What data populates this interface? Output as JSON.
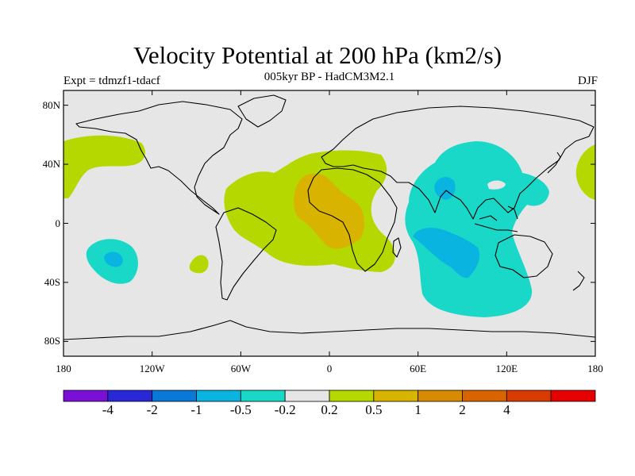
{
  "header": {
    "title": "Velocity Potential at 200 hPa (km2/s)",
    "subtitle": "005kyr BP - HadCM3M2.1",
    "left_label": "Expt = tdmzf1-tdacf",
    "right_label": "DJF"
  },
  "map": {
    "projection": "cylindrical-equidistant",
    "lon_range": [
      -180,
      180
    ],
    "lat_range": [
      -90,
      90
    ],
    "background_color": "#e6e6e6",
    "lat_ticks": [
      {
        "value": 80,
        "label": "80N"
      },
      {
        "value": 40,
        "label": "40N"
      },
      {
        "value": 0,
        "label": "0"
      },
      {
        "value": -40,
        "label": "40S"
      },
      {
        "value": -80,
        "label": "80S"
      }
    ],
    "lon_ticks": [
      {
        "value": -180,
        "label": "180"
      },
      {
        "value": -120,
        "label": "120W"
      },
      {
        "value": -60,
        "label": "60W"
      },
      {
        "value": 0,
        "label": "0"
      },
      {
        "value": 60,
        "label": "60E"
      },
      {
        "value": 120,
        "label": "120E"
      },
      {
        "value": 180,
        "label": "180"
      }
    ]
  },
  "colorbar": {
    "colors": [
      "#7a10d8",
      "#2828d8",
      "#0a78d8",
      "#0ab4e0",
      "#1ad8c8",
      "#e6e6e6",
      "#b4d800",
      "#d8b400",
      "#d88a00",
      "#d86400",
      "#d83a00",
      "#e60000"
    ],
    "labels": [
      "-4",
      "-2",
      "-1",
      "-0.5",
      "-0.2",
      "0.2",
      "0.5",
      "1",
      "2",
      "4"
    ]
  }
}
